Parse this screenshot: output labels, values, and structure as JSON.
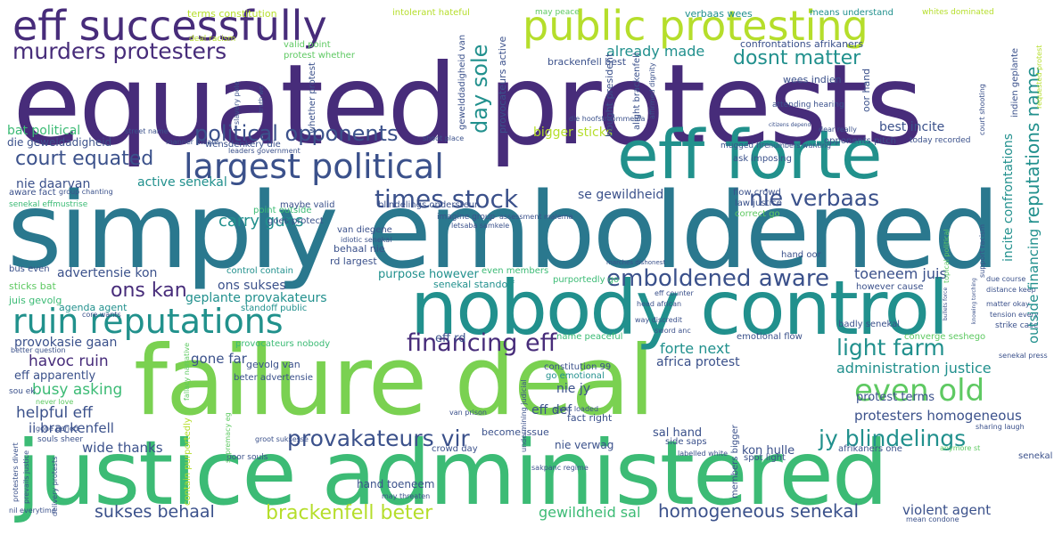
{
  "palette": {
    "dark": "#472c7a",
    "blue": "#3b518b",
    "teal": "#21918c",
    "green": "#5ec962",
    "lime": "#b5de2b",
    "yellow": "#d8e219"
  },
  "words": {
    "equated_protests": "equated protests",
    "simply_emboldened": "simply emboldened",
    "justice_administered": "justice administered",
    "failure_deal": "failure deal",
    "nobody_control": "nobody control",
    "eff_forte": "eff forte",
    "eff_successfully": "eff successfully",
    "public_protesting": "public protesting",
    "largest_political": "largest political",
    "ruin_reputations": "ruin reputations",
    "murders_protesters": "murders protesters",
    "financing_eff": "financing eff",
    "even_old": "even old",
    "times_stock": "times stock",
    "emboldened_aware": "emboldened aware",
    "political_opponents": "political opponents",
    "court_equated": "court equated",
    "dosnt_matter": "dosnt matter",
    "day_sole": "day sole",
    "nie_verbaas": "nie verbaas",
    "light_farm": "light farm",
    "provakateurs_vir": "provakateurs vir",
    "jy_blindelings": "jy blindelings",
    "brackenfell_beter": "brackenfell beter",
    "sukses_behaal": "sukses behaal",
    "homogeneous_senekal": "homogeneous senekal",
    "ons_kan": "ons kan",
    "reputations_name": "reputations name",
    "outside_financing": "outside financing",
    "already_made": "already made",
    "carry_guns": "carry guns",
    "havoc_ruin": "havoc ruin",
    "busy_asking": "busy asking",
    "helpful_eff": "helpful eff",
    "administration_justice": "administration justice",
    "forte_next": "forte next",
    "protesters_homogeneous": "protesters homogeneous",
    "violent_agent": "violent agent",
    "gewildheid_sal": "gewildheid sal",
    "wide_thanks": "wide thanks",
    "ii_brackenfell": "ii brackenfell",
    "bat_political": "bat political",
    "advertensie_kon": "advertensie kon",
    "geplante_provakateurs": "geplante provakateurs",
    "ons_sukses": "ons sukses",
    "toeneem_juis": "toeneem juis",
    "active_senekal": "active senekal",
    "nie_daarvan": "nie daarvan",
    "bigger_sticks": "bigger sticks",
    "best_incite": "best incite",
    "incite_confrontations": "incite confrontations",
    "se_gewildheid": "se gewildheid",
    "provokasie_gaan": "provokasie gaan",
    "gone_far": "gone far",
    "africa_protest": "africa protest",
    "nie_jy": "nie jy",
    "eff_def": "eff def",
    "sal_hand": "sal hand",
    "kon_hulle": "kon hulle",
    "protest_terms": "protest terms",
    "eff_rd": "eff rd",
    "purpose_however": "purpose however",
    "eff_apparently": "eff apparently",
    "hand_toeneem": "hand toeneem",
    "nie_verwag": "nie verwag",
    "die_geweldadigheid": "die geweldadigheid",
    "terms_constitution": "terms constitution",
    "intolerant_hateful": "intolerant hateful",
    "verbaas_wees": "verbaas wees",
    "means_understand": "means understand",
    "whites_dominated": "whites dominated",
    "may_peace": "may peace",
    "valid_point": "valid point",
    "protest_whether": "protest whether",
    "confrontations_afrikaners": "confrontations afrikaners",
    "brackenfell_best": "brackenfell best",
    "wees_indien": "wees indien",
    "deal_racism": "deal racism",
    "wensdenkery_die": "wensdenkery die",
    "senekal_effmustrise": "senekal effmustrise",
    "sticks_bat": "sticks bat",
    "juis_gevolg": "juis gevolg",
    "agenda_agent": "agenda agent",
    "bus_even": "bus even",
    "aware_fact": "aware fact",
    "van_diegene": "van diegene",
    "behaal_nie": "behaal nie",
    "rd_largest": "rd largest",
    "standoff_public": "standoff public",
    "senekal_standoff": "senekal standoff",
    "control_contain": "control contain",
    "even_members": "even members",
    "purportedly_go": "purportedly go",
    "provocateurs_nobody": "provocateurs nobody",
    "gevolg_van": "gevolg van",
    "beter_advertensie": "beter advertensie",
    "constitution_99": "constitution 99",
    "go_emotional": "go emotional",
    "name_peaceful": "name peaceful",
    "emotional_flow": "emotional flow",
    "badly_senekal": "badly senekal",
    "converge_seshego": "converge seshego",
    "however_cause": "however cause",
    "hand_oor": "hand oor",
    "correct_go": "correct go",
    "law_justice": "law justice",
    "flow_crowd": "flow crowd",
    "ask_imposing": "ask imposing",
    "mugged_fire": "mugged fire",
    "opponents_pitch": "opponents pitch",
    "numbers_wanting": "numbers wanting",
    "today_recorded": "today recorded",
    "attending_hearing": "attending hearing",
    "point_outside": "point outside",
    "goes_protect": "goes protect",
    "maybe_valid": "maybe valid",
    "blindelings_ondersteun": "blindelings ondersteun",
    "imagine_group": "imagine group",
    "become_issue": "become issue",
    "crowd_day": "crowd day",
    "fact_right": "fact right",
    "side_saps": "side saps",
    "spot_light": "spot light",
    "afrikaners_one": "afrikaners one",
    "gone_period": "gone period",
    "souls_sheer": "souls sheer",
    "never_love": "never love",
    "van_prison": "van prison",
    "poor_souls": "poor souls",
    "groot_suksesse": "groot suksesse",
    "contain_purportedly": "contain purportedly",
    "sou_ek": "sou ek",
    "better_question": "better question",
    "nil_everytime": "nil everytime",
    "core_wants": "core wants",
    "protesters_divert": "protesters divert",
    "prevails_justice": "prevails justice",
    "senekal_hof": "senekal hof",
    "mean_condone": "mean condone",
    "sharing_laugh": "sharing laugh",
    "anymore_st": "anymore st",
    "leaders_government": "leaders government",
    "street_name": "street name",
    "manner_means": "manner means",
    "shoot_place": "shoot place",
    "group_chanting": "group chanting",
    "assessment_malema": "assessment malema",
    "idiotic_senekal": "idiotic senekal",
    "letsaba_samkele": "letsaba samkele",
    "marches_dishonest": "marches dishonest",
    "head_african": "head african",
    "way_discredit": "way discredit",
    "sword_anc": "sword anc",
    "eff_counter": "eff counter",
    "guns_loaded": "guns loaded",
    "matter_okay": "matter okay",
    "tension_every": "tension every",
    "strike_case": "strike case",
    "senekal_press": "senekal press",
    "distance_keep": "distance keep",
    "due_course": "due course",
    "labelled_white": "labelled white",
    "sakpanc_regime": "sakpanc regime",
    "may_threaten": "may threaten",
    "die_hoofstroommedia": "die hoofstroommedia",
    "dear_really": "dear really",
    "citizens_depend": "citizens depend",
    "bought_president": "bought president",
    "provocateurs_active": "provocateurs active",
    "alight_brackenfell": "alight brackenfell",
    "affirmed_dignity": "affirmed dignity",
    "oor_hand": "oor hand",
    "court_shooting": "court shooting",
    "support_racism": "support racism",
    "topical_political": "topical political",
    "requested_protest": "requested protest",
    "indien_geplante": "indien geplante",
    "gewelddadigheid_van": "gewelddadigheid van",
    "slavery_pole": "slavery pole",
    "truth_we": "truth we",
    "whether_protest": "whether protest",
    "members_bigger": "members bigger",
    "undermining_judicial": "undermining judicial",
    "delivery_protests": "delivery protests",
    "fallacy_narrative": "fallacy narrative",
    "bullets_force": "bullets force",
    "knowing_torching": "knowing torching",
    "supremacy_eg": "supremacy eg"
  }
}
